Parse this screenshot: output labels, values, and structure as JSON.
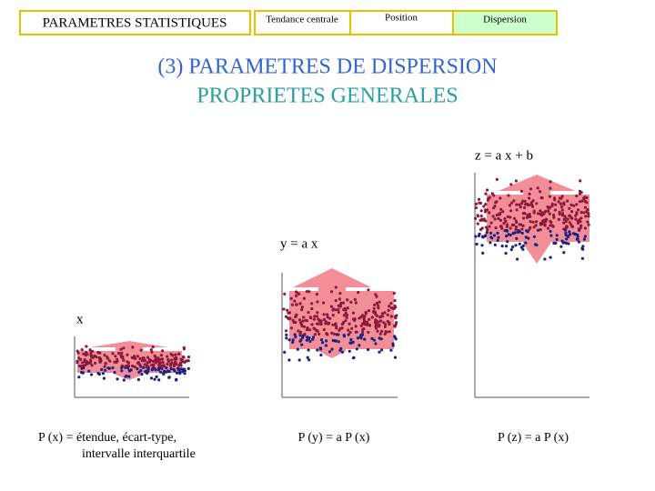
{
  "nav": {
    "section": "PARAMETRES STATISTIQUES",
    "tabs": [
      "Tendance centrale",
      "Position",
      "Dispersion"
    ]
  },
  "title": "(3) PARAMETRES DE DISPERSION",
  "subtitle": "PROPRIETES GENERALES",
  "panels": [
    {
      "label": "x",
      "caption": [
        "P (x) = étendue, écart-type,",
        "intervalle interquartile"
      ]
    },
    {
      "label": "y = a x",
      "caption": [
        "P (y) = a P (x)"
      ]
    },
    {
      "label": "z = a x + b",
      "caption": [
        "P (z) = a P (x)"
      ]
    }
  ]
}
